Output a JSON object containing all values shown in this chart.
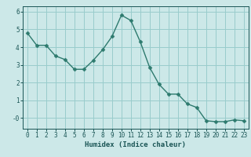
{
  "title": "",
  "xlabel": "Humidex (Indice chaleur)",
  "ylabel": "",
  "x": [
    0,
    1,
    2,
    3,
    4,
    5,
    6,
    7,
    8,
    9,
    10,
    11,
    12,
    13,
    14,
    15,
    16,
    17,
    18,
    19,
    20,
    21,
    22,
    23
  ],
  "y": [
    4.8,
    4.1,
    4.1,
    3.5,
    3.3,
    2.75,
    2.75,
    3.25,
    3.85,
    4.6,
    5.8,
    5.5,
    4.3,
    2.85,
    1.9,
    1.35,
    1.35,
    0.8,
    0.6,
    -0.15,
    -0.2,
    -0.2,
    -0.1,
    -0.15
  ],
  "line_color": "#2d7a6e",
  "marker_color": "#2d7a6e",
  "bg_color": "#cce8e8",
  "grid_color": "#99cccc",
  "axis_label_color": "#1a5555",
  "tick_label_color": "#1a5555",
  "ylim": [
    -0.6,
    6.3
  ],
  "xlim": [
    -0.5,
    23.5
  ],
  "yticks": [
    0,
    1,
    2,
    3,
    4,
    5,
    6
  ],
  "ytick_labels": [
    "-0",
    "1",
    "2",
    "3",
    "4",
    "5",
    "6"
  ],
  "xticks": [
    0,
    1,
    2,
    3,
    4,
    5,
    6,
    7,
    8,
    9,
    10,
    11,
    12,
    13,
    14,
    15,
    16,
    17,
    18,
    19,
    20,
    21,
    22,
    23
  ],
  "label_fontsize": 6.5,
  "tick_fontsize": 5.5,
  "line_width": 1.0,
  "marker_size": 2.5
}
